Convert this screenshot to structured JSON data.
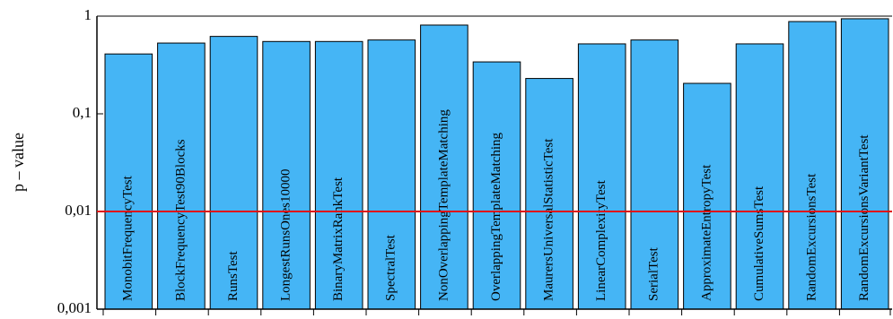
{
  "chart_data": {
    "type": "bar",
    "y_label": "p – value",
    "log_scale": true,
    "color": "#45b5f5",
    "categories": [
      "MonobitFrequencyTest",
      "BlockFrequencyTest90Blocks",
      "RunsTest",
      "LongestRunsOnes10000",
      "BinaryMatrixRankTest",
      "SpectralTest",
      "NonOverlappingTemplateMatching",
      "OverlappingTemplateMatching",
      "MaurersUniversalStatisticTest",
      "LinearComplexityTest",
      "SerialTest",
      "ApproximateEntropyTest",
      "CumulativeSumsTest",
      "RandomExcursionsTest",
      "RandomExcursionsVariantTest"
    ],
    "values": [
      0.41,
      0.53,
      0.62,
      0.55,
      0.55,
      0.57,
      0.81,
      0.34,
      0.23,
      0.52,
      0.57,
      0.205,
      0.52,
      0.88,
      0.94
    ],
    "ylim": [
      0.001,
      1
    ],
    "yticks": [
      {
        "value": 0.001,
        "label": "0,001"
      },
      {
        "value": 0.01,
        "label": "0,01"
      },
      {
        "value": 0.1,
        "label": "0,1"
      },
      1
    ],
    "reference_line": {
      "value": 0.01,
      "color": "#e01010"
    }
  }
}
